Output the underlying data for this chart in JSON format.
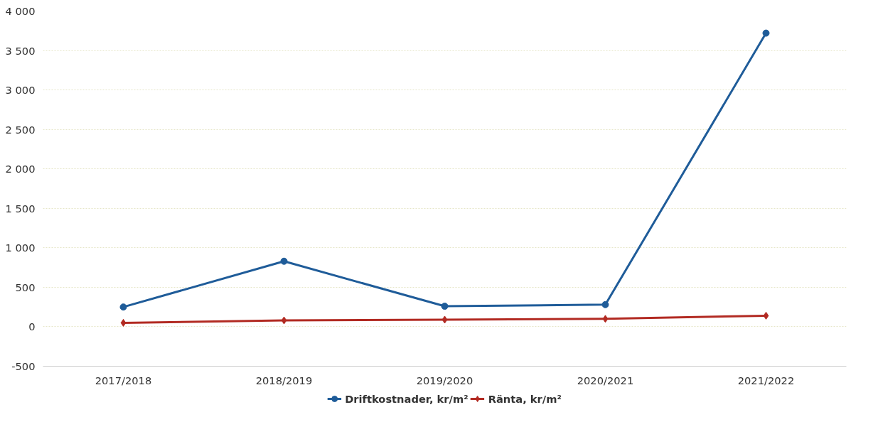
{
  "chart_data": {
    "type": "line",
    "categories": [
      "2017/2018",
      "2018/2019",
      "2019/2020",
      "2020/2021",
      "2021/2022"
    ],
    "series": [
      {
        "name": "Driftkostnader, kr/m²",
        "color": "#1f5c99",
        "marker": "circle",
        "values": [
          250,
          830,
          260,
          280,
          3720
        ]
      },
      {
        "name": "Ränta, kr/m²",
        "color": "#b22a22",
        "marker": "diamond",
        "values": [
          50,
          80,
          90,
          100,
          140
        ]
      }
    ],
    "ylim": [
      -500,
      4000
    ],
    "yticks": [
      {
        "value": -500,
        "label": "-500"
      },
      0,
      500,
      {
        "value": 1000,
        "label": "1 000"
      },
      {
        "value": 1500,
        "label": "1 500"
      },
      {
        "value": 2000,
        "label": "2 000"
      },
      {
        "value": 2500,
        "label": "2 500"
      },
      {
        "value": 3000,
        "label": "3 000"
      },
      {
        "value": 3500,
        "label": "3 500"
      },
      {
        "value": 4000,
        "label": "4 000"
      }
    ],
    "grid": "y",
    "legend": "bottom",
    "line_style": "solid"
  }
}
